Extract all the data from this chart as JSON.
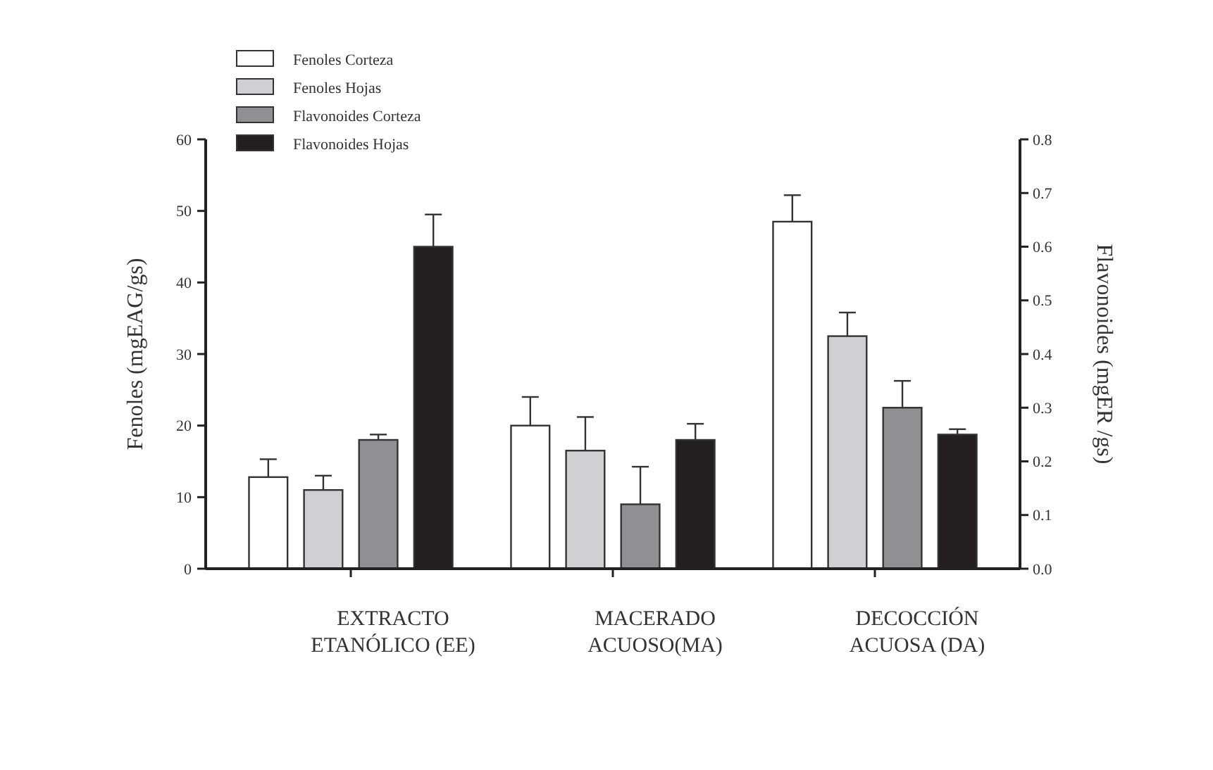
{
  "chart_data": {
    "type": "bar",
    "categories": [
      "EXTRACTO ETANÓLICO (EE)",
      "MACERADO ACUOSO(MA)",
      "DECOCCIÓN ACUOSA (DA)"
    ],
    "ylabel": "Fenoles (mgEAG/gs)",
    "y2label": "Flavonoides (mgER /gs)",
    "ylim": [
      0,
      60
    ],
    "yticks": [
      0,
      10,
      20,
      30,
      40,
      50,
      60
    ],
    "y2lim": [
      0,
      0.8
    ],
    "y2ticks": [
      {
        "value": 0,
        "label": "0.0"
      },
      0.1,
      0.2,
      0.3,
      0.4,
      0.5,
      0.6,
      0.7,
      0.8
    ],
    "legend": "top left",
    "grid": false,
    "series": [
      {
        "name": "Fenoles Corteza",
        "color": "#ffffff",
        "values": [
          12.8,
          20,
          48.5
        ],
        "errors": [
          2.5,
          4,
          3.7
        ]
      },
      {
        "name": "Fenoles Hojas",
        "color": "#d0d0d2",
        "values": [
          11,
          16.5,
          32.5
        ],
        "errors": [
          2,
          4.7,
          3.3
        ]
      },
      {
        "name": "Flavonoides Corteza",
        "color": "#909092",
        "axis": "y2",
        "values": [
          0.24,
          0.12,
          0.3
        ],
        "errors": [
          0.01,
          0.07,
          0.05
        ]
      },
      {
        "name": "Flavonoides Hojas",
        "color": "#231f20",
        "axis": "y2",
        "values": [
          0.6,
          0.24,
          0.25
        ],
        "errors": [
          0.06,
          0.03,
          0.01
        ]
      }
    ]
  }
}
